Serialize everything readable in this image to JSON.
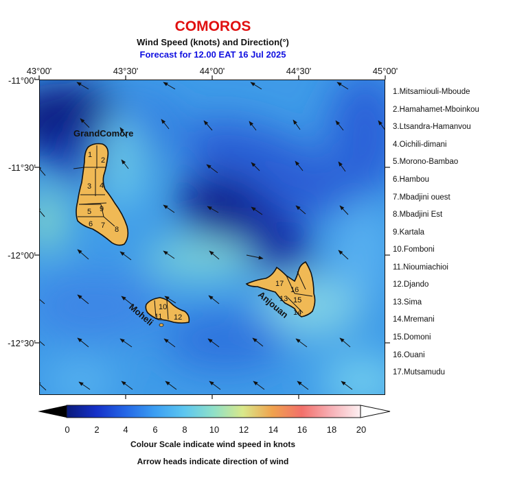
{
  "header": {
    "title": "COMOROS",
    "subtitle": "Wind Speed (knots) and Direction(°)",
    "forecast": "Forecast for  12.00 EAT 16 Jul 2025"
  },
  "axes": {
    "longitude_labels": [
      "43°00'",
      "43°30'",
      "44°00'",
      "44°30'",
      "45°00'"
    ],
    "latitude_labels": [
      "-11°00'",
      "-11°30'",
      "-12°00'",
      "-12°30'"
    ]
  },
  "islands": {
    "grande_comore": "GrandComore",
    "moheli": "Moheli",
    "anjouan": "Anjouan"
  },
  "district_numbers": [
    "1",
    "2",
    "3",
    "4",
    "5",
    "6",
    "7",
    "8",
    "9",
    "10",
    "11",
    "12",
    "13",
    "14",
    "15",
    "16",
    "17"
  ],
  "districts": [
    "1.Mitsamiouli-Mboude",
    "2.Hamahamet-Mboinkou",
    "3.Ltsandra-Hamanvou",
    "4.Oichili-dimani",
    "5.Morono-Bambao",
    "6.Hambou",
    "7.Mbadjini ouest",
    "8.Mbadjini Est",
    "9.Kartala",
    "10.Fomboni",
    "11.Nioumiachioi",
    "12.Djando",
    "13.Sima",
    "14.Mremani",
    "15.Domoni",
    "16.Ouani",
    "17.Mutsamudu"
  ],
  "colorbar": {
    "ticks": [
      "0",
      "2",
      "4",
      "6",
      "8",
      "10",
      "12",
      "14",
      "16",
      "18",
      "20"
    ],
    "caption1": "Colour Scale indicate wind speed in knots",
    "caption2": "Arrow heads indicate direction of wind"
  },
  "wind": {
    "direction_note_visible": false,
    "predominant_arrow_from": "south-east",
    "colors": {
      "calm": "#0c1e8a",
      "low": "#2f6fe0",
      "mid": "#4aa8f5",
      "moderate": "#8ee0d0",
      "land": "#f0b955"
    }
  }
}
